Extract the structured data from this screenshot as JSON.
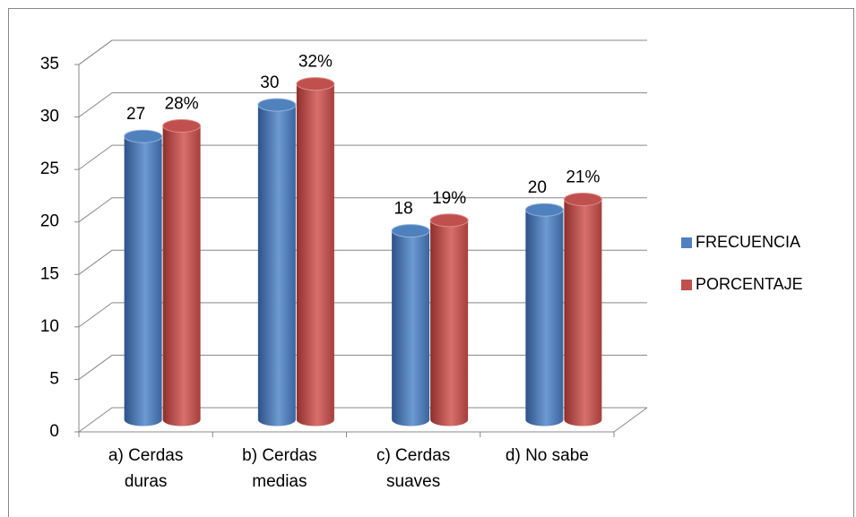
{
  "chart_data": {
    "type": "bar3d",
    "categories": [
      "a) Cerdas duras",
      "b) Cerdas medias",
      "c) Cerdas suaves",
      "d) No sabe"
    ],
    "series": [
      {
        "name": "FRECUENCIA",
        "color": "#4f81bd",
        "values": [
          27,
          30,
          18,
          20
        ]
      },
      {
        "name": "PORCENTAJE",
        "color": "#c0504d",
        "values": [
          28,
          32,
          19,
          21
        ],
        "value_labels": [
          "28%",
          "32%",
          "19%",
          "21%"
        ]
      }
    ],
    "ylim": [
      0,
      35
    ],
    "yticks": [
      0,
      5,
      10,
      15,
      20,
      25,
      30,
      35
    ],
    "grid": true,
    "legend": "right"
  }
}
